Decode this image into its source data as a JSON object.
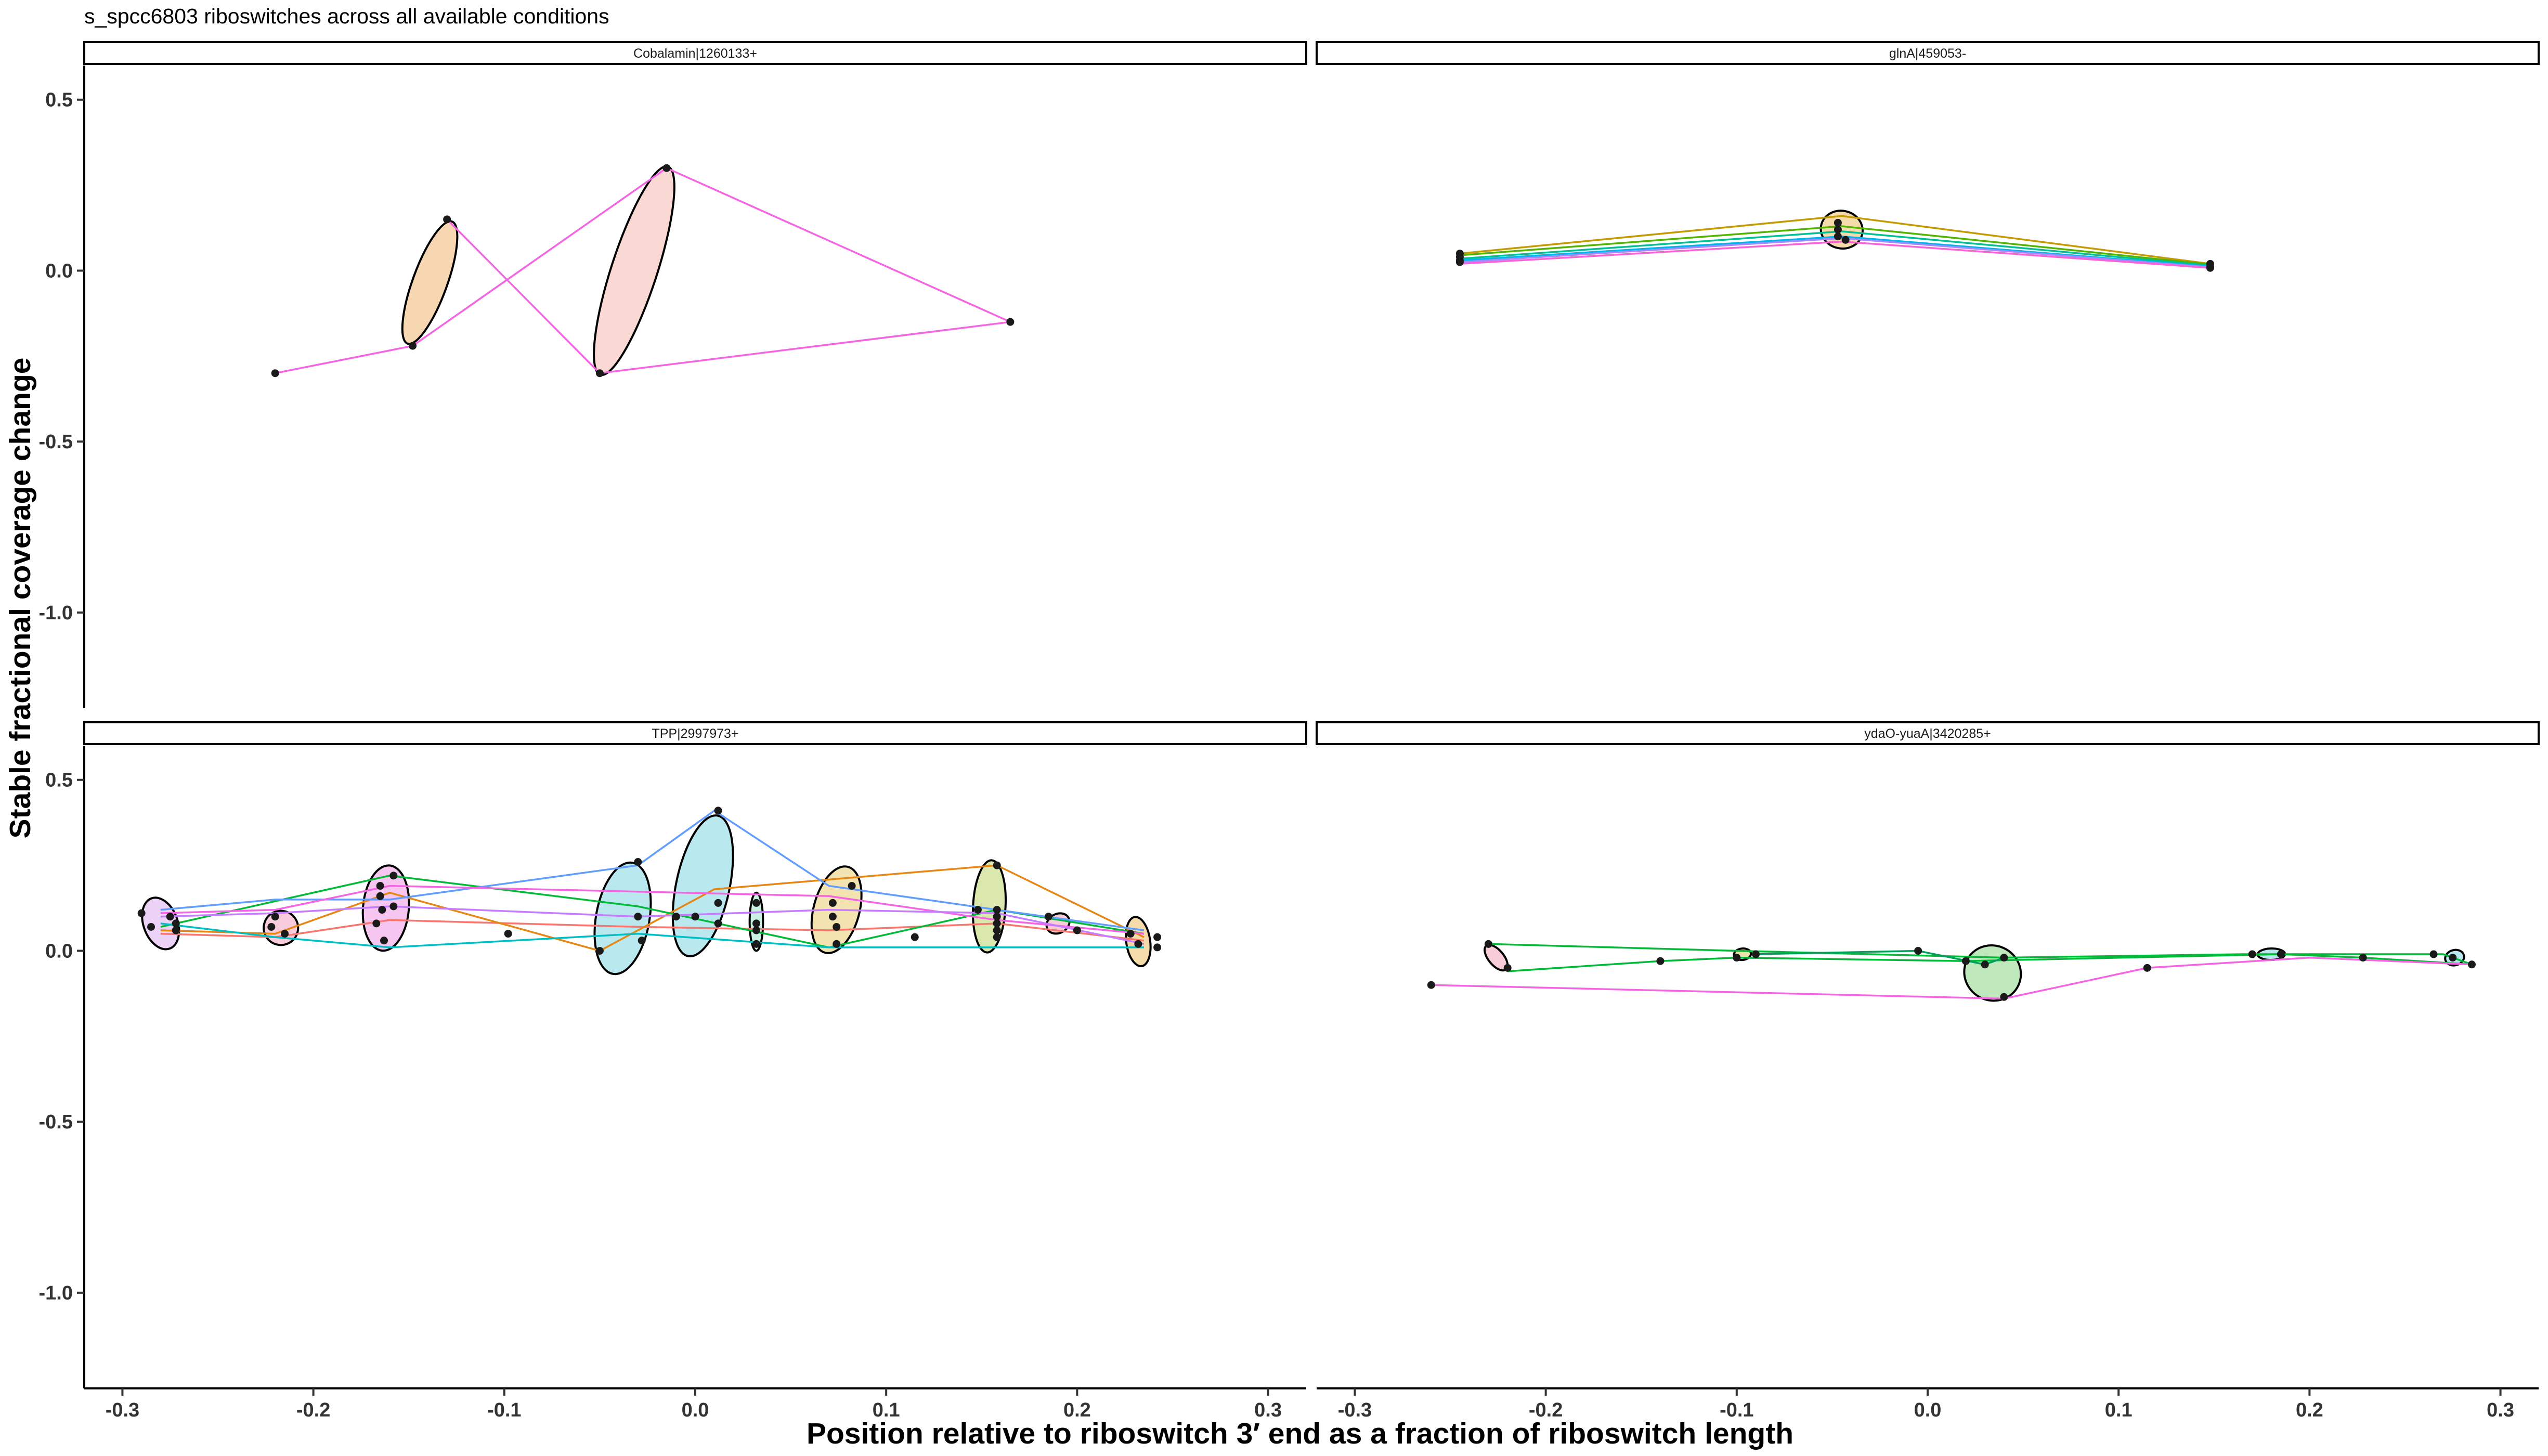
{
  "chart_data": {
    "type": "scatter",
    "title": "s_spcc6803 riboswitches across all available conditions",
    "xlabel": "Position relative to riboswitch 3′ end as a fraction of riboswitch length",
    "ylabel": "Stable fractional coverage change",
    "xlim": [
      -0.32,
      0.32
    ],
    "ylim": [
      -1.28,
      0.6
    ],
    "x_ticks": [
      -0.3,
      -0.2,
      -0.1,
      0.0,
      0.1,
      0.2,
      0.3
    ],
    "x_tick_labels": [
      "-0.3",
      "-0.2",
      "-0.1",
      "0.0",
      "0.1",
      "0.2",
      "0.3"
    ],
    "y_ticks": [
      0.5,
      0.0,
      -0.5,
      -1.0
    ],
    "y_tick_labels": [
      "0.5",
      "0.0",
      "-0.5",
      "-1.0"
    ],
    "grid": false,
    "legend": "none",
    "panel_border_color": "#000000",
    "panels": [
      {
        "label": "Cobalamin|1260133+",
        "series": [
          {
            "color": "#f564e3",
            "x": [
              -0.22,
              -0.148,
              -0.015,
              0.165
            ],
            "y": [
              -0.3,
              -0.22,
              0.3,
              -0.15
            ]
          },
          {
            "color": "#f564e3",
            "x": [
              -0.13,
              -0.05,
              0.165
            ],
            "y": [
              0.15,
              -0.3,
              -0.15
            ]
          }
        ],
        "ellipses": [
          {
            "cx": -0.139,
            "cy": -0.035,
            "rx": 0.009,
            "ry": 0.19,
            "angle": 20,
            "fill": "#f5d3a8"
          },
          {
            "cx": -0.032,
            "cy": 0.0,
            "rx": 0.012,
            "ry": 0.32,
            "angle": 18,
            "fill": "#fad4cf"
          }
        ],
        "points": [
          [
            -0.22,
            -0.3
          ],
          [
            -0.148,
            -0.22
          ],
          [
            -0.13,
            0.15
          ],
          [
            -0.05,
            -0.3
          ],
          [
            -0.015,
            0.3
          ],
          [
            0.165,
            -0.15
          ]
        ]
      },
      {
        "label": "glnA|459053-",
        "series": [
          {
            "color": "#c49a00",
            "x": [
              -0.245,
              -0.045,
              0.148
            ],
            "y": [
              0.05,
              0.16,
              0.02
            ]
          },
          {
            "color": "#53b400",
            "x": [
              -0.245,
              -0.045,
              0.148
            ],
            "y": [
              0.045,
              0.13,
              0.018
            ]
          },
          {
            "color": "#00c094",
            "x": [
              -0.245,
              -0.045,
              0.148
            ],
            "y": [
              0.035,
              0.115,
              0.015
            ]
          },
          {
            "color": "#00b6eb",
            "x": [
              -0.245,
              -0.045,
              0.148
            ],
            "y": [
              0.03,
              0.1,
              0.012
            ]
          },
          {
            "color": "#a58aff",
            "x": [
              -0.245,
              -0.045,
              0.148
            ],
            "y": [
              0.025,
              0.095,
              0.01
            ]
          },
          {
            "color": "#fb61d7",
            "x": [
              -0.245,
              -0.045,
              0.148
            ],
            "y": [
              0.02,
              0.085,
              0.008
            ]
          }
        ],
        "ellipses": [
          {
            "cx": -0.045,
            "cy": 0.12,
            "rx": 0.011,
            "ry": 0.055,
            "angle": 12,
            "fill": "#f5d7a1"
          }
        ],
        "points": [
          [
            -0.245,
            0.05
          ],
          [
            -0.245,
            0.04
          ],
          [
            -0.245,
            0.03
          ],
          [
            -0.245,
            0.025
          ],
          [
            -0.047,
            0.14
          ],
          [
            -0.047,
            0.12
          ],
          [
            -0.047,
            0.1
          ],
          [
            -0.043,
            0.09
          ],
          [
            0.148,
            0.02
          ],
          [
            0.148,
            0.012
          ],
          [
            0.148,
            0.008
          ]
        ]
      },
      {
        "label": "TPP|2997973+",
        "series": [
          {
            "color": "#f8766d",
            "x": [
              -0.28,
              -0.22,
              -0.16,
              -0.03,
              0.07,
              0.158,
              0.235
            ],
            "y": [
              0.05,
              0.04,
              0.09,
              0.07,
              0.06,
              0.08,
              0.03
            ]
          },
          {
            "color": "#e68613",
            "x": [
              -0.28,
              -0.22,
              -0.16,
              -0.05,
              0.01,
              0.158,
              0.235
            ],
            "y": [
              0.06,
              0.05,
              0.17,
              0.0,
              0.18,
              0.25,
              0.04
            ]
          },
          {
            "color": "#00ba38",
            "x": [
              -0.28,
              -0.16,
              -0.03,
              0.07,
              0.158,
              0.235
            ],
            "y": [
              0.07,
              0.22,
              0.13,
              0.01,
              0.12,
              0.05
            ]
          },
          {
            "color": "#00bfc4",
            "x": [
              -0.28,
              -0.22,
              -0.16,
              -0.03,
              0.07,
              0.158,
              0.235
            ],
            "y": [
              0.08,
              0.04,
              0.01,
              0.05,
              0.01,
              0.01,
              0.01
            ]
          },
          {
            "color": "#619cff",
            "x": [
              -0.28,
              -0.22,
              -0.16,
              -0.03,
              0.01,
              0.07,
              0.158,
              0.235
            ],
            "y": [
              0.12,
              0.15,
              0.15,
              0.25,
              0.41,
              0.19,
              0.12,
              0.06
            ]
          },
          {
            "color": "#f564e3",
            "x": [
              -0.28,
              -0.22,
              -0.16,
              0.07,
              0.158,
              0.235
            ],
            "y": [
              0.11,
              0.12,
              0.19,
              0.16,
              0.09,
              0.05
            ]
          },
          {
            "color": "#c77cff",
            "x": [
              -0.28,
              -0.22,
              -0.16,
              -0.03,
              0.07,
              0.158,
              0.235
            ],
            "y": [
              0.1,
              0.11,
              0.13,
              0.1,
              0.12,
              0.11,
              0.02
            ]
          }
        ],
        "ellipses": [
          {
            "cx": -0.28,
            "cy": 0.08,
            "rx": 0.014,
            "ry": 0.05,
            "angle": 70,
            "fill": "#e9cdf5"
          },
          {
            "cx": -0.217,
            "cy": 0.067,
            "rx": 0.009,
            "ry": 0.05,
            "angle": 15,
            "fill": "#f7c5d9"
          },
          {
            "cx": -0.162,
            "cy": 0.125,
            "rx": 0.012,
            "ry": 0.125,
            "angle": 5,
            "fill": "#f5c0f0"
          },
          {
            "cx": -0.038,
            "cy": 0.095,
            "rx": 0.014,
            "ry": 0.165,
            "angle": 10,
            "fill": "#b2e6ed"
          },
          {
            "cx": 0.004,
            "cy": 0.19,
            "rx": 0.014,
            "ry": 0.21,
            "angle": 12,
            "fill": "#b2e6ed"
          },
          {
            "cx": 0.032,
            "cy": 0.085,
            "rx": 0.0035,
            "ry": 0.085,
            "angle": 0,
            "fill": "#c3eedf"
          },
          {
            "cx": 0.074,
            "cy": 0.12,
            "rx": 0.012,
            "ry": 0.13,
            "angle": 15,
            "fill": "#f2e0a8"
          },
          {
            "cx": 0.154,
            "cy": 0.13,
            "rx": 0.0085,
            "ry": 0.135,
            "angle": 3,
            "fill": "#d6e5a4"
          },
          {
            "cx": 0.19,
            "cy": 0.08,
            "rx": 0.005,
            "ry": 0.035,
            "angle": 62,
            "fill": "#f7c8d3"
          },
          {
            "cx": 0.232,
            "cy": 0.027,
            "rx": 0.013,
            "ry": 0.035,
            "angle": 82,
            "fill": "#f5d7a1"
          }
        ],
        "points": [
          [
            -0.29,
            0.11
          ],
          [
            -0.285,
            0.07
          ],
          [
            -0.275,
            0.1
          ],
          [
            -0.272,
            0.08
          ],
          [
            -0.272,
            0.06
          ],
          [
            -0.22,
            0.1
          ],
          [
            -0.222,
            0.07
          ],
          [
            -0.215,
            0.05
          ],
          [
            -0.165,
            0.19
          ],
          [
            -0.165,
            0.16
          ],
          [
            -0.164,
            0.12
          ],
          [
            -0.167,
            0.08
          ],
          [
            -0.163,
            0.03
          ],
          [
            -0.158,
            0.22
          ],
          [
            -0.158,
            0.13
          ],
          [
            -0.098,
            0.05
          ],
          [
            -0.05,
            0.0
          ],
          [
            -0.03,
            0.26
          ],
          [
            -0.03,
            0.1
          ],
          [
            -0.028,
            0.03
          ],
          [
            -0.01,
            0.1
          ],
          [
            0.0,
            0.1
          ],
          [
            0.012,
            0.41
          ],
          [
            0.012,
            0.14
          ],
          [
            0.012,
            0.08
          ],
          [
            0.032,
            0.14
          ],
          [
            0.032,
            0.08
          ],
          [
            0.032,
            0.06
          ],
          [
            0.032,
            0.02
          ],
          [
            0.072,
            0.14
          ],
          [
            0.072,
            0.1
          ],
          [
            0.074,
            0.07
          ],
          [
            0.074,
            0.02
          ],
          [
            0.082,
            0.19
          ],
          [
            0.115,
            0.04
          ],
          [
            0.148,
            0.12
          ],
          [
            0.158,
            0.25
          ],
          [
            0.158,
            0.12
          ],
          [
            0.158,
            0.1
          ],
          [
            0.158,
            0.08
          ],
          [
            0.158,
            0.06
          ],
          [
            0.158,
            0.04
          ],
          [
            0.185,
            0.1
          ],
          [
            0.2,
            0.06
          ],
          [
            0.228,
            0.05
          ],
          [
            0.232,
            0.02
          ],
          [
            0.242,
            0.04
          ],
          [
            0.242,
            0.01
          ]
        ]
      },
      {
        "label": "ydaO-yuaA|3420285+",
        "series": [
          {
            "color": "#00ba38",
            "x": [
              -0.23,
              -0.1,
              0.04,
              0.165,
              0.27,
              0.285
            ],
            "y": [
              0.02,
              0.0,
              -0.02,
              -0.01,
              -0.01,
              -0.04
            ]
          },
          {
            "color": "#00ba38",
            "x": [
              -0.22,
              -0.14,
              -0.1,
              0.02,
              0.185,
              0.228,
              0.285
            ],
            "y": [
              -0.06,
              -0.03,
              -0.02,
              -0.03,
              -0.01,
              -0.02,
              -0.04
            ]
          },
          {
            "color": "#00a05a",
            "x": [
              -0.09,
              -0.005,
              0.03,
              0.04
            ],
            "y": [
              -0.01,
              0.0,
              -0.04,
              -0.02
            ]
          },
          {
            "color": "#f564e3",
            "x": [
              -0.26,
              0.04,
              0.115,
              0.2,
              0.285
            ],
            "y": [
              -0.1,
              -0.14,
              -0.05,
              -0.02,
              -0.04
            ]
          }
        ],
        "ellipses": [
          {
            "cx": -0.226,
            "cy": -0.02,
            "rx": 0.004,
            "ry": 0.045,
            "angle": -40,
            "fill": "#f7c8d3"
          },
          {
            "cx": -0.097,
            "cy": -0.01,
            "rx": 0.003,
            "ry": 0.025,
            "angle": 84,
            "fill": "#f0dca0"
          },
          {
            "cx": 0.034,
            "cy": -0.065,
            "rx": 0.015,
            "ry": 0.08,
            "angle": 30,
            "fill": "#b8e6b5"
          },
          {
            "cx": 0.18,
            "cy": -0.01,
            "rx": 0.003,
            "ry": 0.04,
            "angle": 89,
            "fill": "#b2e6ed"
          },
          {
            "cx": 0.276,
            "cy": -0.02,
            "rx": 0.004,
            "ry": 0.028,
            "angle": 75,
            "fill": "#b2e6ed"
          }
        ],
        "points": [
          [
            -0.26,
            -0.1
          ],
          [
            -0.23,
            0.02
          ],
          [
            -0.22,
            -0.05
          ],
          [
            -0.14,
            -0.03
          ],
          [
            -0.1,
            -0.02
          ],
          [
            -0.09,
            -0.01
          ],
          [
            -0.005,
            0.0
          ],
          [
            0.02,
            -0.03
          ],
          [
            0.03,
            -0.04
          ],
          [
            0.04,
            -0.02
          ],
          [
            0.04,
            -0.135
          ],
          [
            0.115,
            -0.05
          ],
          [
            0.17,
            -0.01
          ],
          [
            0.185,
            -0.01
          ],
          [
            0.228,
            -0.02
          ],
          [
            0.265,
            -0.01
          ],
          [
            0.275,
            -0.02
          ],
          [
            0.285,
            -0.04
          ]
        ]
      }
    ]
  }
}
